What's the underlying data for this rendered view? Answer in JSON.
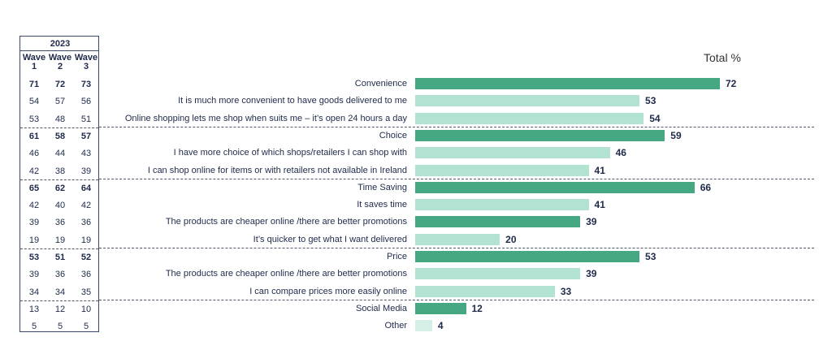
{
  "chart_data": {
    "type": "bar",
    "orientation": "horizontal",
    "title": "Total %",
    "table_year": "2023",
    "wave_headers": [
      [
        "Wave",
        "1"
      ],
      [
        "Wave",
        "2"
      ],
      [
        "Wave",
        "3"
      ]
    ],
    "colors": {
      "group": "#45a882",
      "item": "#b2e3d2",
      "other": "#d6efe6"
    },
    "xlim": [
      0,
      100
    ],
    "rows": [
      {
        "label": "Convenience",
        "value": 72,
        "kind": "group",
        "waves": [
          "71",
          "72",
          "73"
        ]
      },
      {
        "label": "It is much more convenient to have goods delivered to me",
        "value": 53,
        "kind": "item",
        "waves": [
          "54",
          "57",
          "56"
        ]
      },
      {
        "label": "Online shopping lets me shop when suits me – it’s open 24 hours a day",
        "value": 54,
        "kind": "item",
        "waves": [
          "53",
          "48",
          "51"
        ]
      },
      {
        "label": "Choice",
        "value": 59,
        "kind": "group",
        "waves": [
          "61",
          "58",
          "57"
        ]
      },
      {
        "label": "I have more choice of which shops/retailers I can shop with",
        "value": 46,
        "kind": "item",
        "waves": [
          "46",
          "44",
          "43"
        ]
      },
      {
        "label": "I can shop online for items or with retailers not available in Ireland",
        "value": 41,
        "kind": "item",
        "waves": [
          "42",
          "38",
          "39"
        ]
      },
      {
        "label": "Time Saving",
        "value": 66,
        "kind": "group",
        "waves": [
          "65",
          "62",
          "64"
        ]
      },
      {
        "label": "It saves time",
        "value": 41,
        "kind": "item",
        "waves": [
          "42",
          "40",
          "42"
        ]
      },
      {
        "label": "The products are cheaper online /there are better promotions",
        "value": 39,
        "kind": "group",
        "waves": [
          "39",
          "36",
          "36"
        ]
      },
      {
        "label": "It’s quicker to get what I want delivered",
        "value": 20,
        "kind": "item",
        "waves": [
          "19",
          "19",
          "19"
        ]
      },
      {
        "label": "Price",
        "value": 53,
        "kind": "group",
        "waves": [
          "53",
          "51",
          "52"
        ]
      },
      {
        "label": "The products are cheaper online /there are better promotions",
        "value": 39,
        "kind": "item",
        "waves": [
          "39",
          "36",
          "36"
        ]
      },
      {
        "label": "I can compare prices more easily online",
        "value": 33,
        "kind": "item",
        "waves": [
          "34",
          "34",
          "35"
        ]
      },
      {
        "label": "Social Media",
        "value": 12,
        "kind": "group",
        "waves": [
          "13",
          "12",
          "10"
        ]
      },
      {
        "label": "Other",
        "value": 4,
        "kind": "other",
        "waves": [
          "5",
          "5",
          "5"
        ]
      }
    ],
    "bold_wave_rows": [
      0,
      3,
      6,
      10
    ],
    "separators_after_rows": [
      2,
      5,
      9,
      12
    ]
  }
}
